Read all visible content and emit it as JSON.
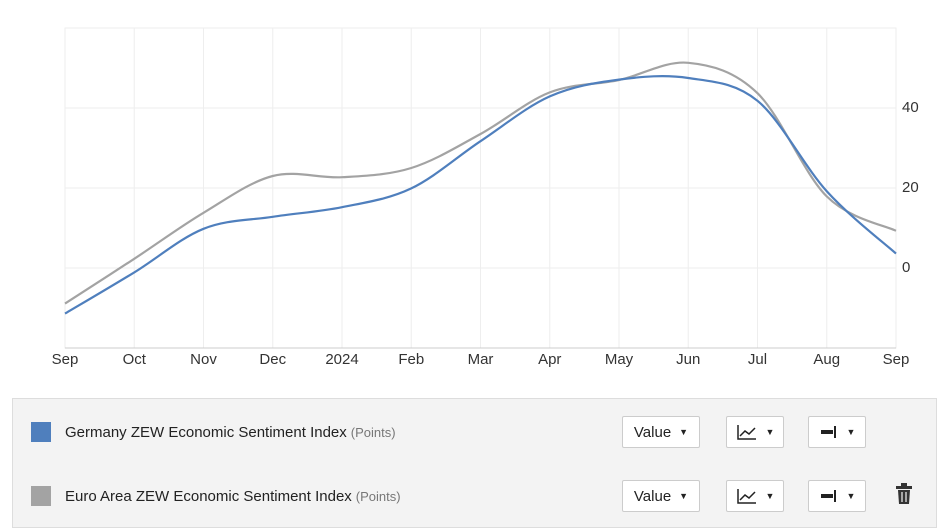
{
  "chart_data": {
    "type": "line",
    "categories": [
      "Sep",
      "Oct",
      "Nov",
      "Dec",
      "2024",
      "Feb",
      "Mar",
      "Apr",
      "May",
      "Jun",
      "Jul",
      "Aug",
      "Sep"
    ],
    "series": [
      {
        "name": "Germany ZEW Economic Sentiment Index",
        "color": "#4f7fbd",
        "values": [
          -11.4,
          -1.1,
          9.8,
          12.8,
          15.2,
          19.9,
          31.7,
          42.9,
          47.1,
          47.5,
          41.8,
          19.2,
          3.6
        ]
      },
      {
        "name": "Euro Area ZEW Economic Sentiment Index",
        "color": "#a3a3a3",
        "values": [
          -8.9,
          2.3,
          13.8,
          23.0,
          22.7,
          25.0,
          33.5,
          43.9,
          47.0,
          51.3,
          43.7,
          17.9,
          9.3
        ]
      }
    ],
    "ylim": [
      -20,
      60
    ],
    "yticks": [
      0,
      20,
      40
    ],
    "grid": true
  },
  "legend_panel": {
    "rows": [
      {
        "unit": "(Points)",
        "control": "Value"
      },
      {
        "unit": "(Points)",
        "control": "Value"
      }
    ]
  }
}
